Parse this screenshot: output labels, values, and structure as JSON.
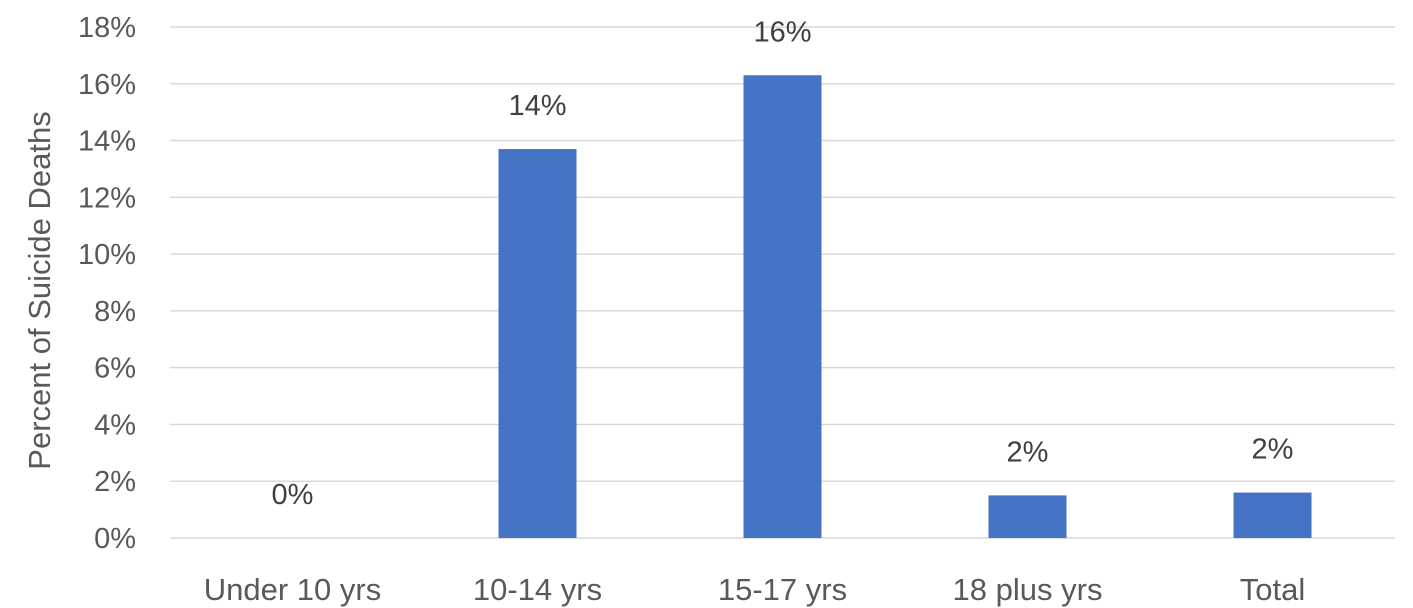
{
  "chart_data": {
    "type": "bar",
    "title": "",
    "xlabel": "",
    "ylabel": "Percent of Suicide Deaths",
    "categories": [
      "Under 10 yrs",
      "10-14 yrs",
      "15-17 yrs",
      "18 plus yrs",
      "Total"
    ],
    "values": [
      0,
      13.7,
      16.3,
      1.5,
      1.6
    ],
    "data_labels": [
      "0%",
      "14%",
      "16%",
      "2%",
      "2%"
    ],
    "ylim": [
      0,
      18
    ],
    "yticks": [
      0,
      2,
      4,
      6,
      8,
      10,
      12,
      14,
      16,
      18
    ],
    "ytick_labels": [
      "0%",
      "2%",
      "4%",
      "6%",
      "8%",
      "10%",
      "12%",
      "14%",
      "16%",
      "18%"
    ],
    "grid": true,
    "legend": "none",
    "colors": {
      "bar": "#4472c4",
      "grid": "#d9d9d9",
      "text": "#595959"
    }
  }
}
